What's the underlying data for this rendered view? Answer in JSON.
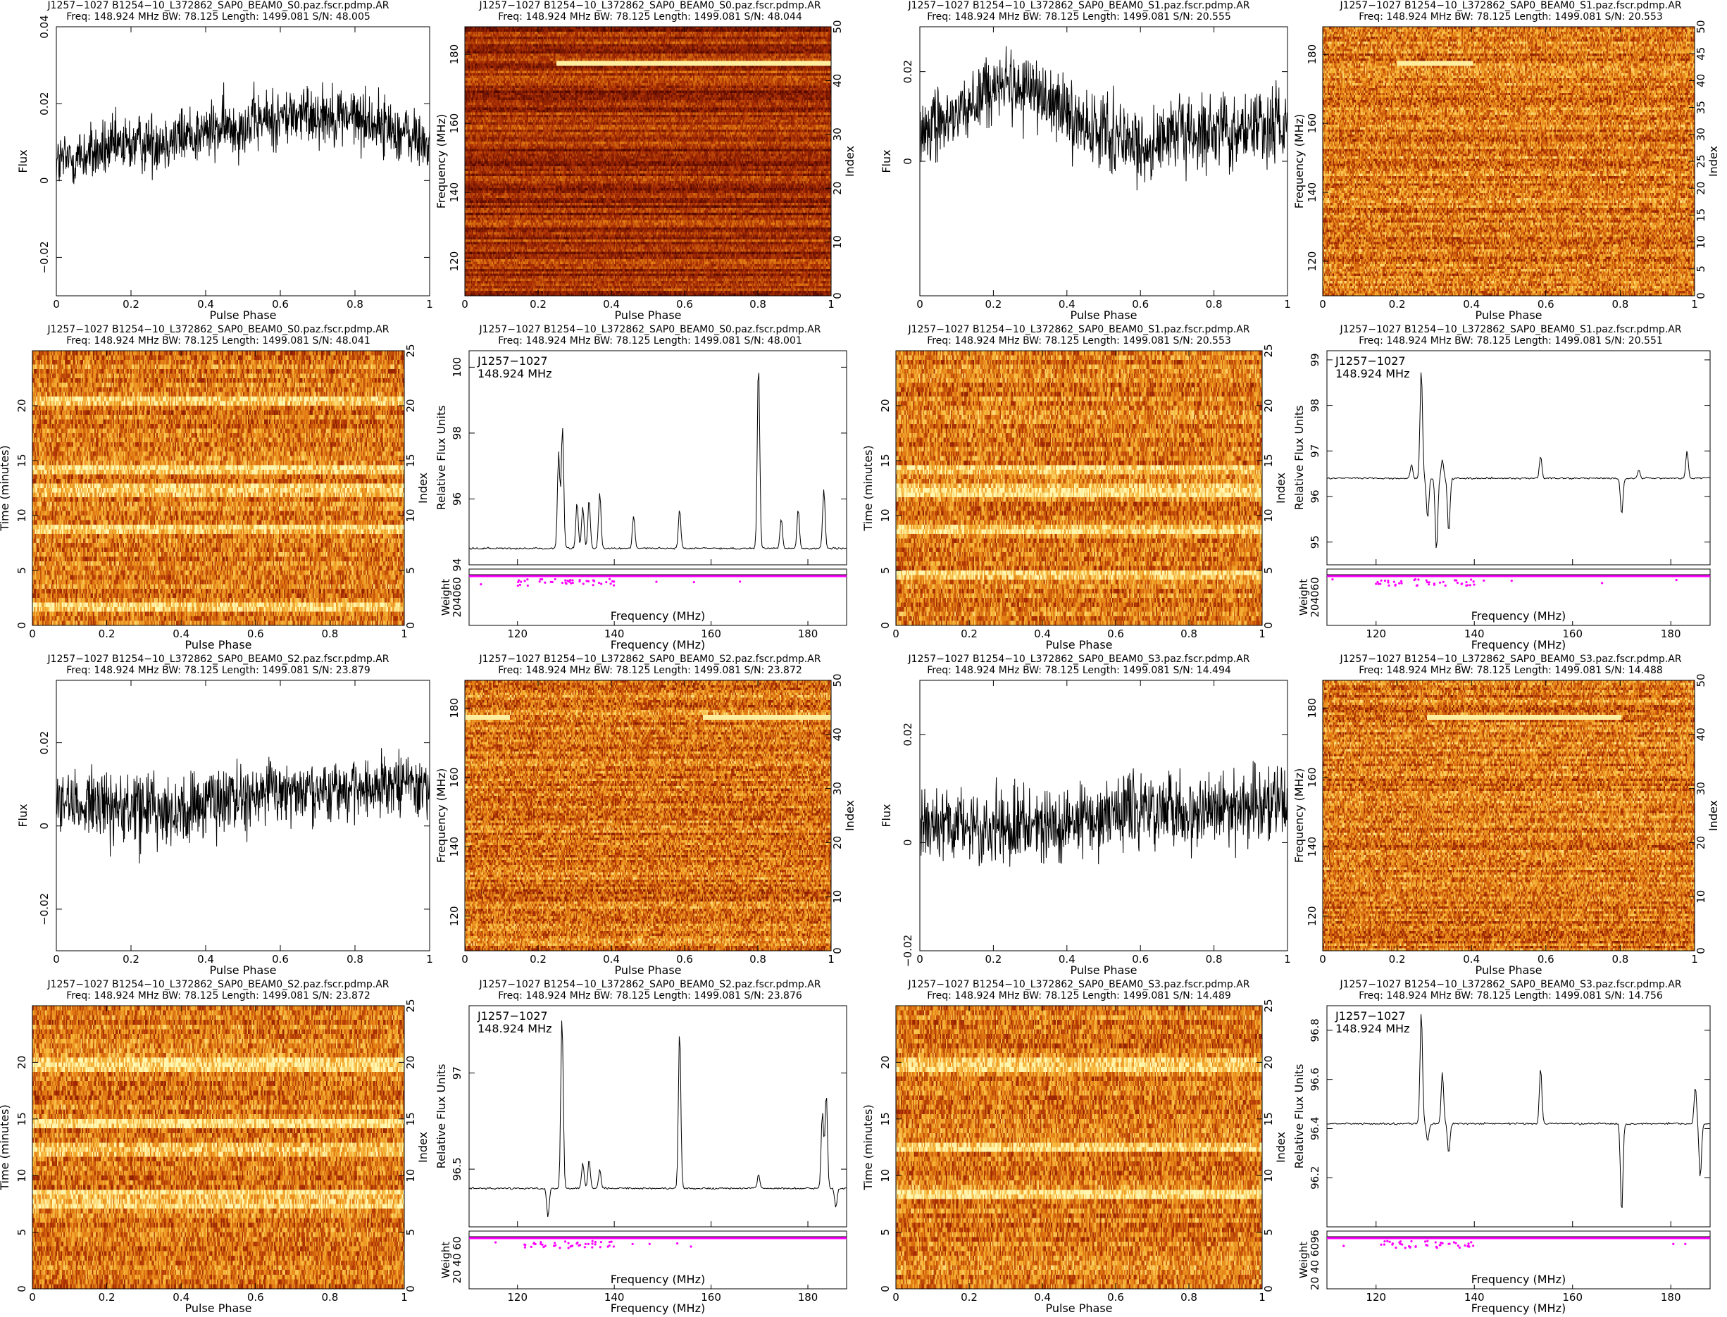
{
  "colors": {
    "trace": "#000000",
    "axis": "#000000",
    "weight_points": "#ff00ff",
    "heat_low": "#5c0a00",
    "heat_mid": "#e27a12",
    "heat_high": "#fff3a8"
  },
  "panels": [
    {
      "type": "profile",
      "title": "J1257−1027 B1254−10_L372862_SAP0_BEAM0_S0.paz.fscr.pdmp.AR",
      "info": "Freq: 148.924 MHz BW: 78.125 Length: 1499.081 S/N: 48.005",
      "xlabel": "Pulse Phase",
      "ylabel": "Flux",
      "xlim": [
        0,
        1
      ],
      "ylim": [
        -0.03,
        0.04
      ],
      "xticks": [
        "0",
        "0.2",
        "0.4",
        "0.6",
        "0.8",
        "1"
      ],
      "yticks": [
        {
          "v": -0.02,
          "t": "−0.02"
        },
        {
          "v": 0,
          "t": "0"
        },
        {
          "v": 0.02,
          "t": "0.02"
        },
        {
          "v": 0.04,
          "t": "0.04"
        }
      ],
      "shape": "s0"
    },
    {
      "type": "freq",
      "title": "J1257−1027 B1254−10_L372862_SAP0_BEAM0_S0.paz.fscr.pdmp.AR",
      "info": "Freq: 148.924 MHz BW: 78.125 Length: 1499.081 S/N: 48.044",
      "xlabel": "Pulse Phase",
      "ylabel": "Frequency (MHz)",
      "y2label": "Index",
      "xticks": [
        "0",
        "0.2",
        "0.4",
        "0.6",
        "0.8",
        "1"
      ],
      "yticks": [
        "120",
        "140",
        "160",
        "180"
      ],
      "y2ticks": [
        "0",
        "10",
        "20",
        "30",
        "40",
        "50"
      ],
      "ylim": [
        110,
        188
      ],
      "variant": "dark",
      "rfi": [
        {
          "y": 177.5,
          "x0": 0.25,
          "x1": 1
        }
      ]
    },
    {
      "type": "profile",
      "title": "J1257−1027 B1254−10_L372862_SAP0_BEAM0_S1.paz.fscr.pdmp.AR",
      "info": "Freq: 148.924 MHz BW: 78.125 Length: 1499.081 S/N: 20.555",
      "xlabel": "Pulse Phase",
      "ylabel": "Flux",
      "xlim": [
        0,
        1
      ],
      "ylim": [
        -0.03,
        0.03
      ],
      "xticks": [
        "0",
        "0.2",
        "0.4",
        "0.6",
        "0.8",
        "1"
      ],
      "yticks": [
        {
          "v": 0,
          "t": "0"
        },
        {
          "v": 0.02,
          "t": "0.02"
        }
      ],
      "shape": "s1"
    },
    {
      "type": "freq",
      "title": "J1257−1027 B1254−10_L372862_SAP0_BEAM0_S1.paz.fscr.pdmp.AR",
      "info": "Freq: 148.924 MHz BW: 78.125 Length: 1499.081 S/N: 20.553",
      "xlabel": "Pulse Phase",
      "ylabel": "Frequency (MHz)",
      "y2label": "Index",
      "xticks": [
        "0",
        "0.2",
        "0.4",
        "0.6",
        "0.8",
        "1"
      ],
      "yticks": [
        "120",
        "140",
        "160",
        "180"
      ],
      "y2ticks": [
        "0",
        "5",
        "10",
        "15",
        "20",
        "25",
        "30",
        "35",
        "40",
        "45",
        "50"
      ],
      "ylim": [
        110,
        188
      ],
      "variant": "bright",
      "rfi": [
        {
          "y": 177.5,
          "x0": 0.2,
          "x1": 0.4
        }
      ]
    },
    {
      "type": "time",
      "title": "J1257−1027 B1254−10_L372862_SAP0_BEAM0_S0.paz.fscr.pdmp.AR",
      "info": "Freq: 148.924 MHz BW: 78.125 Length: 1499.081 S/N: 48.041",
      "xlabel": "Pulse Phase",
      "ylabel": "Time (minutes)",
      "y2label": "Index",
      "xticks": [
        "0",
        "0.2",
        "0.4",
        "0.6",
        "0.8",
        "1"
      ],
      "yticks": [
        "0",
        "5",
        "10",
        "15",
        "20"
      ],
      "y2ticks": [
        "0",
        "5",
        "10",
        "15",
        "20",
        "25"
      ],
      "ylim": [
        0,
        25
      ],
      "bands": [
        8.7,
        12.3,
        14.1,
        20.5,
        1.8
      ]
    },
    {
      "type": "spec",
      "title": "J1257−1027 B1254−10_L372862_SAP0_BEAM0_S0.paz.fscr.pdmp.AR",
      "info": "Freq: 148.924 MHz BW: 78.125 Length: 1499.081 S/N: 48.001",
      "note1": "J1257−1027",
      "note2": "148.924 MHz",
      "xlabel": "Frequency (MHz)",
      "ylabel": "Relative Flux Units",
      "wlabel": "Weight",
      "wticks": "204060",
      "xticks": [
        "120",
        "140",
        "160",
        "180"
      ],
      "xlim": [
        110,
        188
      ],
      "yticks": [
        "94",
        "96",
        "98",
        "100"
      ],
      "ylim": [
        94,
        100.5
      ],
      "baseline": 94.5,
      "peaks": [
        [
          128.5,
          97.4
        ],
        [
          129.3,
          98.2
        ],
        [
          132.3,
          95.9
        ],
        [
          133.5,
          95.8
        ],
        [
          134.8,
          96
        ],
        [
          137,
          96.2
        ],
        [
          144,
          95.5
        ],
        [
          153.5,
          95.7
        ],
        [
          169.8,
          100.2
        ],
        [
          174.5,
          95.4
        ],
        [
          178,
          95.7
        ],
        [
          183.3,
          96.3
        ]
      ],
      "dips": []
    },
    {
      "type": "time",
      "title": "J1257−1027 B1254−10_L372862_SAP0_BEAM0_S1.paz.fscr.pdmp.AR",
      "info": "Freq: 148.924 MHz BW: 78.125 Length: 1499.081 S/N: 20.553",
      "xlabel": "Pulse Phase",
      "ylabel": "Time (minutes)",
      "y2label": "Index",
      "xticks": [
        "0",
        "0.2",
        "0.4",
        "0.6",
        "0.8",
        "1"
      ],
      "yticks": [
        "0",
        "5",
        "10",
        "15",
        "20"
      ],
      "y2ticks": [
        "0",
        "5",
        "10",
        "15",
        "20",
        "25"
      ],
      "ylim": [
        0,
        25
      ],
      "bands": [
        8.7,
        12.3,
        14.1,
        4.7
      ]
    },
    {
      "type": "spec",
      "title": "J1257−1027 B1254−10_L372862_SAP0_BEAM0_S1.paz.fscr.pdmp.AR",
      "info": "Freq: 148.924 MHz BW: 78.125 Length: 1499.081 S/N: 20.551",
      "note1": "J1257−1027",
      "note2": "148.924 MHz",
      "xlabel": "Frequency (MHz)",
      "ylabel": "Relative Flux Units",
      "wlabel": "Weight",
      "wticks": "204060",
      "xticks": [
        "120",
        "140",
        "160",
        "180"
      ],
      "xlim": [
        110,
        188
      ],
      "yticks": [
        "95",
        "96",
        "97",
        "98",
        "99"
      ],
      "ylim": [
        94.5,
        99.2
      ],
      "baseline": 96.4,
      "peaks": [
        [
          127.2,
          96.7
        ],
        [
          129.2,
          98.8
        ],
        [
          133.5,
          96.8
        ],
        [
          153.5,
          96.9
        ],
        [
          173.5,
          96.6
        ],
        [
          183.3,
          97
        ]
      ],
      "dips": [
        [
          130.5,
          95.5
        ],
        [
          132.3,
          94.8
        ],
        [
          134.8,
          95.2
        ],
        [
          170,
          95.6
        ]
      ]
    },
    {
      "type": "profile",
      "title": "J1257−1027 B1254−10_L372862_SAP0_BEAM0_S2.paz.fscr.pdmp.AR",
      "info": "Freq: 148.924 MHz BW: 78.125 Length: 1499.081 S/N: 23.879",
      "xlabel": "Pulse Phase",
      "ylabel": "Flux",
      "xlim": [
        0,
        1
      ],
      "ylim": [
        -0.03,
        0.035
      ],
      "xticks": [
        "0",
        "0.2",
        "0.4",
        "0.6",
        "0.8",
        "1"
      ],
      "yticks": [
        {
          "v": -0.02,
          "t": "−0.02"
        },
        {
          "v": 0,
          "t": "0"
        },
        {
          "v": 0.02,
          "t": "0.02"
        }
      ],
      "shape": "s2"
    },
    {
      "type": "freq",
      "title": "J1257−1027 B1254−10_L372862_SAP0_BEAM0_S2.paz.fscr.pdmp.AR",
      "info": "Freq: 148.924 MHz BW: 78.125 Length: 1499.081 S/N: 23.872",
      "xlabel": "Pulse Phase",
      "ylabel": "Frequency (MHz)",
      "y2label": "Index",
      "xticks": [
        "0",
        "0.2",
        "0.4",
        "0.6",
        "0.8",
        "1"
      ],
      "yticks": [
        "120",
        "140",
        "160",
        "180"
      ],
      "y2ticks": [
        "0",
        "10",
        "20",
        "30",
        "40",
        "50"
      ],
      "ylim": [
        110,
        188
      ],
      "variant": "bright",
      "rfi": [
        {
          "y": 177.5,
          "x0": 0,
          "x1": 0.12
        },
        {
          "y": 177.5,
          "x0": 0.65,
          "x1": 1
        }
      ]
    },
    {
      "type": "profile",
      "title": "J1257−1027 B1254−10_L372862_SAP0_BEAM0_S3.paz.fscr.pdmp.AR",
      "info": "Freq: 148.924 MHz BW: 78.125 Length: 1499.081 S/N: 14.494",
      "xlabel": "Pulse Phase",
      "ylabel": "Flux",
      "xlim": [
        0,
        1
      ],
      "ylim": [
        -0.02,
        0.03
      ],
      "xticks": [
        "0",
        "0.2",
        "0.4",
        "0.6",
        "0.8",
        "1"
      ],
      "yticks": [
        {
          "v": -0.02,
          "t": "−0.02"
        },
        {
          "v": 0,
          "t": "0"
        },
        {
          "v": 0.02,
          "t": "0.02"
        }
      ],
      "shape": "s3"
    },
    {
      "type": "freq",
      "title": "J1257−1027 B1254−10_L372862_SAP0_BEAM0_S3.paz.fscr.pdmp.AR",
      "info": "Freq: 148.924 MHz BW: 78.125 Length: 1499.081 S/N: 14.488",
      "xlabel": "Pulse Phase",
      "ylabel": "Frequency (MHz)",
      "y2label": "Index",
      "xticks": [
        "0",
        "0.2",
        "0.4",
        "0.6",
        "0.8",
        "1"
      ],
      "yticks": [
        "120",
        "140",
        "160",
        "180"
      ],
      "y2ticks": [
        "0",
        "10",
        "20",
        "30",
        "40",
        "50"
      ],
      "ylim": [
        110,
        188
      ],
      "variant": "bright",
      "rfi": [
        {
          "y": 177.5,
          "x0": 0.28,
          "x1": 0.8
        }
      ]
    },
    {
      "type": "time",
      "title": "J1257−1027 B1254−10_L372862_SAP0_BEAM0_S2.paz.fscr.pdmp.AR",
      "info": "Freq: 148.924 MHz BW: 78.125 Length: 1499.081 S/N: 23.872",
      "xlabel": "Pulse Phase",
      "ylabel": "Time (minutes)",
      "y2label": "Index",
      "xticks": [
        "0",
        "0.2",
        "0.4",
        "0.6",
        "0.8",
        "1"
      ],
      "yticks": [
        "0",
        "5",
        "10",
        "15",
        "20"
      ],
      "y2ticks": [
        "0",
        "5",
        "10",
        "15",
        "20",
        "25"
      ],
      "ylim": [
        0,
        25
      ],
      "bands": [
        8.2,
        7.5,
        12.3,
        14.5,
        19.8
      ]
    },
    {
      "type": "spec",
      "title": "J1257−1027 B1254−10_L372862_SAP0_BEAM0_S2.paz.fscr.pdmp.AR",
      "info": "Freq: 148.924 MHz BW: 78.125 Length: 1499.081 S/N: 23.876",
      "note1": "J1257−1027",
      "note2": "148.924 MHz",
      "xlabel": "Frequency (MHz)",
      "ylabel": "Relative Flux Units",
      "wlabel": "Weight",
      "wticks": "20 40 60",
      "xticks": [
        "120",
        "140",
        "160",
        "180"
      ],
      "xlim": [
        110,
        188
      ],
      "yticks": [
        "96.5",
        "97"
      ],
      "ylim": [
        96.2,
        97.35
      ],
      "baseline": 96.4,
      "peaks": [
        [
          129.2,
          97.3
        ],
        [
          133.5,
          96.53
        ],
        [
          134.8,
          96.55
        ],
        [
          137,
          96.5
        ],
        [
          153.5,
          97.23
        ],
        [
          169.8,
          96.47
        ],
        [
          183,
          96.8
        ],
        [
          183.8,
          96.9
        ]
      ],
      "dips": [
        [
          126.3,
          96.25
        ],
        [
          185.8,
          96.3
        ]
      ]
    },
    {
      "type": "time",
      "title": "J1257−1027 B1254−10_L372862_SAP0_BEAM0_S3.paz.fscr.pdmp.AR",
      "info": "Freq: 148.924 MHz BW: 78.125 Length: 1499.081 S/N: 14.489",
      "xlabel": "Pulse Phase",
      "ylabel": "Time (minutes)",
      "y2label": "Index",
      "xticks": [
        "0",
        "0.2",
        "0.4",
        "0.6",
        "0.8",
        "1"
      ],
      "yticks": [
        "0",
        "5",
        "10",
        "15",
        "20"
      ],
      "y2ticks": [
        "0",
        "5",
        "10",
        "15",
        "20",
        "25"
      ],
      "ylim": [
        0,
        25
      ],
      "bands": [
        8.5,
        12.5,
        19.8
      ]
    },
    {
      "type": "spec",
      "title": "J1257−1027 B1254−10_L372862_SAP0_BEAM0_S3.paz.fscr.pdmp.AR",
      "info": "Freq: 148.924 MHz BW: 78.125 Length: 1499.081 S/N: 14.756",
      "note1": "J1257−1027",
      "note2": "148.924 MHz",
      "xlabel": "Frequency (MHz)",
      "ylabel": "Relative Flux Units",
      "wlabel": "Weight",
      "wticks": "20 40 6096",
      "xticks": [
        "120",
        "140",
        "160",
        "180"
      ],
      "xlim": [
        110,
        188
      ],
      "yticks": [
        "96.2",
        "96.4",
        "96.6",
        "96.8"
      ],
      "ylim": [
        96.0,
        96.9
      ],
      "baseline": 96.42,
      "peaks": [
        [
          129.2,
          96.88
        ],
        [
          133.5,
          96.63
        ],
        [
          153.5,
          96.65
        ],
        [
          185,
          96.57
        ]
      ],
      "dips": [
        [
          130.5,
          96.35
        ],
        [
          134.8,
          96.3
        ],
        [
          170,
          96.05
        ],
        [
          186,
          96.2
        ]
      ]
    }
  ]
}
